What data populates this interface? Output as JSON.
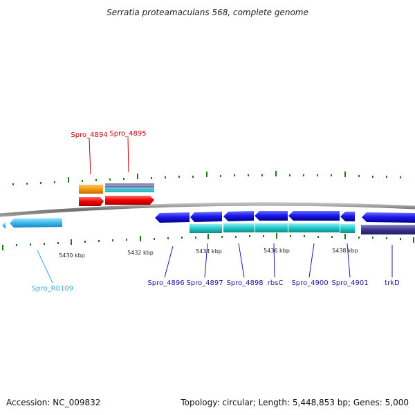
{
  "title": "Serratia proteamaculans 568, complete genome",
  "footer": {
    "accession": "Accession: NC_009832",
    "summary": "Topology: circular; Length: 5,448,853 bp; Genes: 5,000"
  },
  "scale_labels": [
    "5430 kbp",
    "5432 kbp",
    "5434 kbp",
    "5436 kbp",
    "5438 kbp"
  ],
  "colors": {
    "red_label": "#cc0000",
    "blue_label": "#1a1aa8",
    "cyan_label": "#33aadd",
    "tick": "#1a7a1a"
  },
  "genes": [
    {
      "label": "Spro_4894",
      "color": "red",
      "icon": "orange-gene-block"
    },
    {
      "label": "Spro_4895",
      "color": "red",
      "icon": "striped-gene-block"
    },
    {
      "label": "Spro_R0109",
      "color": "cyan",
      "icon": "cyan-gene-arrow"
    },
    {
      "label": "Spro_4896",
      "color": "blue",
      "icon": "blue-gene-arrow"
    },
    {
      "label": "Spro_4897",
      "color": "blue",
      "icon": "blue-gene-arrow"
    },
    {
      "label": "Spro_4898",
      "color": "blue",
      "icon": "blue-gene-arrow"
    },
    {
      "label": "rbsC",
      "color": "blue",
      "icon": "blue-gene-arrow"
    },
    {
      "label": "Spro_4900",
      "color": "blue",
      "icon": "blue-gene-arrow"
    },
    {
      "label": "Spro_4901",
      "color": "blue",
      "icon": "blue-gene-arrow"
    },
    {
      "label": "trkD",
      "color": "blue",
      "icon": "navy-gene-arrow"
    }
  ]
}
